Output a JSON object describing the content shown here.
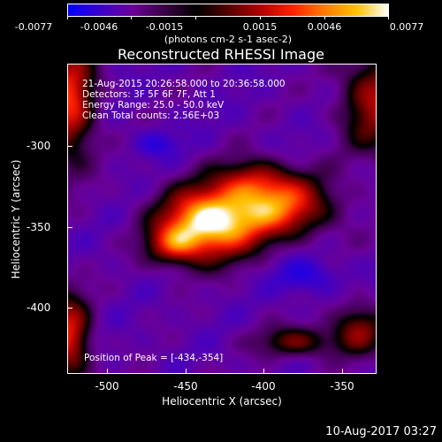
{
  "colorbar": {
    "tick_labels": [
      "-0.0077",
      "-0.0046",
      "-0.0015",
      "0.0015",
      "0.0046",
      "0.0077"
    ],
    "units": "(photons cm-2 s-1 asec-2)",
    "colors": [
      "#0000ff",
      "#3a00cc",
      "#6a0099",
      "#3a0044",
      "#000000",
      "#550000",
      "#b00000",
      "#ff2000",
      "#ff7a00",
      "#ffc000",
      "#ffffff"
    ]
  },
  "title": "Reconstructed RHESSI Image",
  "info": {
    "time": "21-Aug-2015 20:26:58.000 to 20:36:58.000",
    "detectors": "Detectors: 3F 5F 6F 7F, Att 1",
    "energy": "Energy Range: 25.0 - 50.0 keV",
    "clean": "Clean    Total counts: 2.56E+03",
    "peak": "Position of Peak = [-434,-354]"
  },
  "axes": {
    "xlabel": "Heliocentric X (arcsec)",
    "ylabel": "Heliocentric Y (arcsec)",
    "xticks": [
      "-500",
      "-450",
      "-400",
      "-350"
    ],
    "yticks": [
      "-300",
      "-350",
      "-400"
    ],
    "xlim": [
      -526,
      -329
    ],
    "ylim": [
      -444,
      -266
    ]
  },
  "footer": "10-Aug-2017 03:27"
}
